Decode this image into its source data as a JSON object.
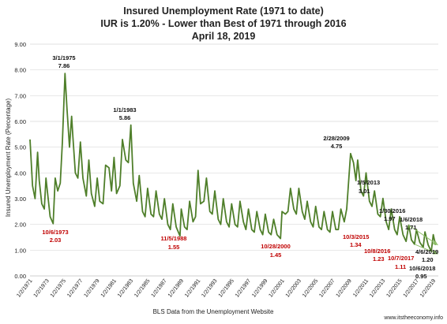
{
  "chart_data": {
    "type": "line",
    "title": [
      "Insured Unemployment Rate (1971 to date)",
      "IUR is 1.20% - Lower than Best of 1971 through 2016",
      "April 18, 2019"
    ],
    "ylabel": "Insured Unemployment Rate (Percentage)",
    "xlabel": "BLS Data from the Unemployment Website",
    "source": "www.itstheeconomy.info",
    "ylim": [
      0,
      9
    ],
    "yticks": [
      "0.00",
      "1.00",
      "2.00",
      "3.00",
      "4.00",
      "5.00",
      "6.00",
      "7.00",
      "8.00",
      "9.00"
    ],
    "xlim": [
      1971.0,
      2019.6
    ],
    "xtick_labels": [
      "1/2/1971",
      "1/2/1973",
      "1/2/1975",
      "1/2/1977",
      "1/2/1979",
      "1/2/1981",
      "1/2/1983",
      "1/2/1985",
      "1/2/1987",
      "1/2/1989",
      "1/2/1991",
      "1/2/1993",
      "1/2/1995",
      "1/2/1997",
      "1/2/1999",
      "1/2/2001",
      "1/2/2003",
      "1/2/2005",
      "1/2/2007",
      "1/2/2009",
      "1/2/2011",
      "1/2/2013",
      "1/2/2015",
      "1/2/2017",
      "1/2/2019"
    ],
    "grid": true,
    "series": [
      {
        "color": "#4f7f2a",
        "x": [
          1971.0,
          1971.3,
          1971.6,
          1971.9,
          1972.1,
          1972.4,
          1972.7,
          1972.9,
          1973.1,
          1973.4,
          1973.75,
          1974.0,
          1974.3,
          1974.6,
          1974.85,
          1975.16,
          1975.4,
          1975.7,
          1975.95,
          1976.1,
          1976.4,
          1976.7,
          1977.0,
          1977.3,
          1977.7,
          1978.0,
          1978.3,
          1978.7,
          1979.0,
          1979.3,
          1979.7,
          1980.0,
          1980.4,
          1980.7,
          1981.0,
          1981.3,
          1981.7,
          1982.0,
          1982.4,
          1982.7,
          1983.0,
          1983.3,
          1983.7,
          1984.0,
          1984.4,
          1984.7,
          1985.0,
          1985.4,
          1985.7,
          1986.0,
          1986.4,
          1986.7,
          1987.0,
          1987.4,
          1987.7,
          1988.0,
          1988.4,
          1988.85,
          1989.0,
          1989.4,
          1989.7,
          1990.0,
          1990.4,
          1990.7,
          1991.0,
          1991.3,
          1991.7,
          1992.0,
          1992.4,
          1992.7,
          1993.0,
          1993.4,
          1993.7,
          1994.0,
          1994.4,
          1994.7,
          1995.0,
          1995.4,
          1995.7,
          1996.0,
          1996.4,
          1996.7,
          1997.0,
          1997.4,
          1997.7,
          1998.0,
          1998.4,
          1998.7,
          1999.0,
          1999.4,
          1999.7,
          2000.0,
          2000.4,
          2000.82,
          2001.0,
          2001.4,
          2001.7,
          2002.0,
          2002.4,
          2002.7,
          2003.0,
          2003.4,
          2003.7,
          2004.0,
          2004.4,
          2004.7,
          2005.0,
          2005.4,
          2005.7,
          2006.0,
          2006.4,
          2006.7,
          2007.0,
          2007.4,
          2007.7,
          2008.0,
          2008.4,
          2008.7,
          2009.16,
          2009.5,
          2009.8,
          2010.0,
          2010.4,
          2010.7,
          2011.0,
          2011.4,
          2011.7,
          2012.0,
          2012.4,
          2012.7,
          2013.01,
          2013.4,
          2013.7,
          2014.0,
          2014.4,
          2014.7,
          2015.0,
          2015.4,
          2015.76,
          2016.08,
          2016.4,
          2016.77,
          2017.0,
          2017.4,
          2017.8,
          2018.01,
          2018.4,
          2018.76,
          2019.0,
          2019.27
        ],
        "y": [
          5.3,
          3.5,
          3.0,
          4.8,
          3.7,
          2.8,
          2.6,
          3.8,
          3.2,
          2.3,
          2.03,
          3.8,
          3.3,
          3.6,
          5.2,
          7.86,
          6.5,
          5.0,
          6.2,
          5.4,
          4.0,
          3.8,
          5.2,
          3.8,
          3.1,
          4.5,
          3.2,
          2.7,
          3.8,
          2.9,
          2.8,
          4.3,
          4.2,
          3.3,
          4.6,
          3.2,
          3.5,
          5.3,
          4.5,
          4.4,
          5.86,
          3.6,
          2.9,
          3.9,
          2.5,
          2.3,
          3.4,
          2.4,
          2.3,
          3.3,
          2.4,
          2.2,
          3.0,
          2.0,
          1.8,
          2.8,
          1.9,
          1.55,
          2.6,
          1.9,
          1.8,
          2.9,
          2.1,
          2.3,
          4.1,
          2.8,
          2.9,
          3.8,
          2.5,
          2.4,
          3.3,
          2.2,
          2.0,
          3.0,
          2.1,
          1.9,
          2.8,
          2.0,
          1.9,
          2.9,
          2.1,
          1.8,
          2.6,
          1.8,
          1.7,
          2.5,
          1.8,
          1.6,
          2.4,
          1.7,
          1.6,
          2.2,
          1.6,
          1.45,
          2.5,
          2.4,
          2.5,
          3.4,
          2.6,
          2.4,
          3.4,
          2.5,
          2.2,
          2.9,
          2.1,
          1.9,
          2.7,
          1.9,
          1.8,
          2.5,
          1.8,
          1.7,
          2.5,
          1.8,
          1.8,
          2.6,
          2.1,
          2.6,
          4.75,
          4.4,
          3.7,
          4.5,
          3.3,
          3.1,
          4.0,
          2.9,
          2.7,
          3.3,
          2.4,
          2.3,
          3.01,
          2.1,
          1.8,
          2.6,
          1.8,
          1.6,
          2.3,
          1.6,
          1.34,
          1.97,
          1.4,
          1.23,
          1.8,
          1.3,
          1.11,
          1.71,
          1.2,
          0.95,
          1.6,
          1.2
        ]
      }
    ],
    "annotations": [
      {
        "date": "3/1/1975",
        "value": "7.86",
        "color": "#111111"
      },
      {
        "date": "1/1/1983",
        "value": "5.86",
        "color": "#111111"
      },
      {
        "date": "2/28/2009",
        "value": "4.75",
        "color": "#111111"
      },
      {
        "date": "1/5/2013",
        "value": "3.01",
        "color": "#111111"
      },
      {
        "date": "1/30/2016",
        "value": "1.97",
        "color": "#111111"
      },
      {
        "date": "1/6/2018",
        "value": "1.71",
        "color": "#111111"
      },
      {
        "date": "4/6/2019",
        "value": "1.20",
        "color": "#111111"
      },
      {
        "date": "10/6/2018",
        "value": "0.95",
        "color": "#111111"
      },
      {
        "date": "10/6/1973",
        "value": "2.03",
        "color": "#c00000"
      },
      {
        "date": "11/5/1988",
        "value": "1.55",
        "color": "#c00000"
      },
      {
        "date": "10/28/2000",
        "value": "1.45",
        "color": "#c00000"
      },
      {
        "date": "10/3/2015",
        "value": "1.34",
        "color": "#c00000"
      },
      {
        "date": "10/8/2016",
        "value": "1.23",
        "color": "#c00000"
      },
      {
        "date": "10/7/2017",
        "value": "1.11",
        "color": "#c00000"
      }
    ],
    "trend_lines": [
      {
        "from": [
          2016.08,
          1.97
        ],
        "to": [
          2019.55,
          1.2
        ]
      },
      {
        "from": [
          2016.77,
          1.23
        ],
        "to": [
          2019.55,
          0.85
        ]
      }
    ]
  }
}
